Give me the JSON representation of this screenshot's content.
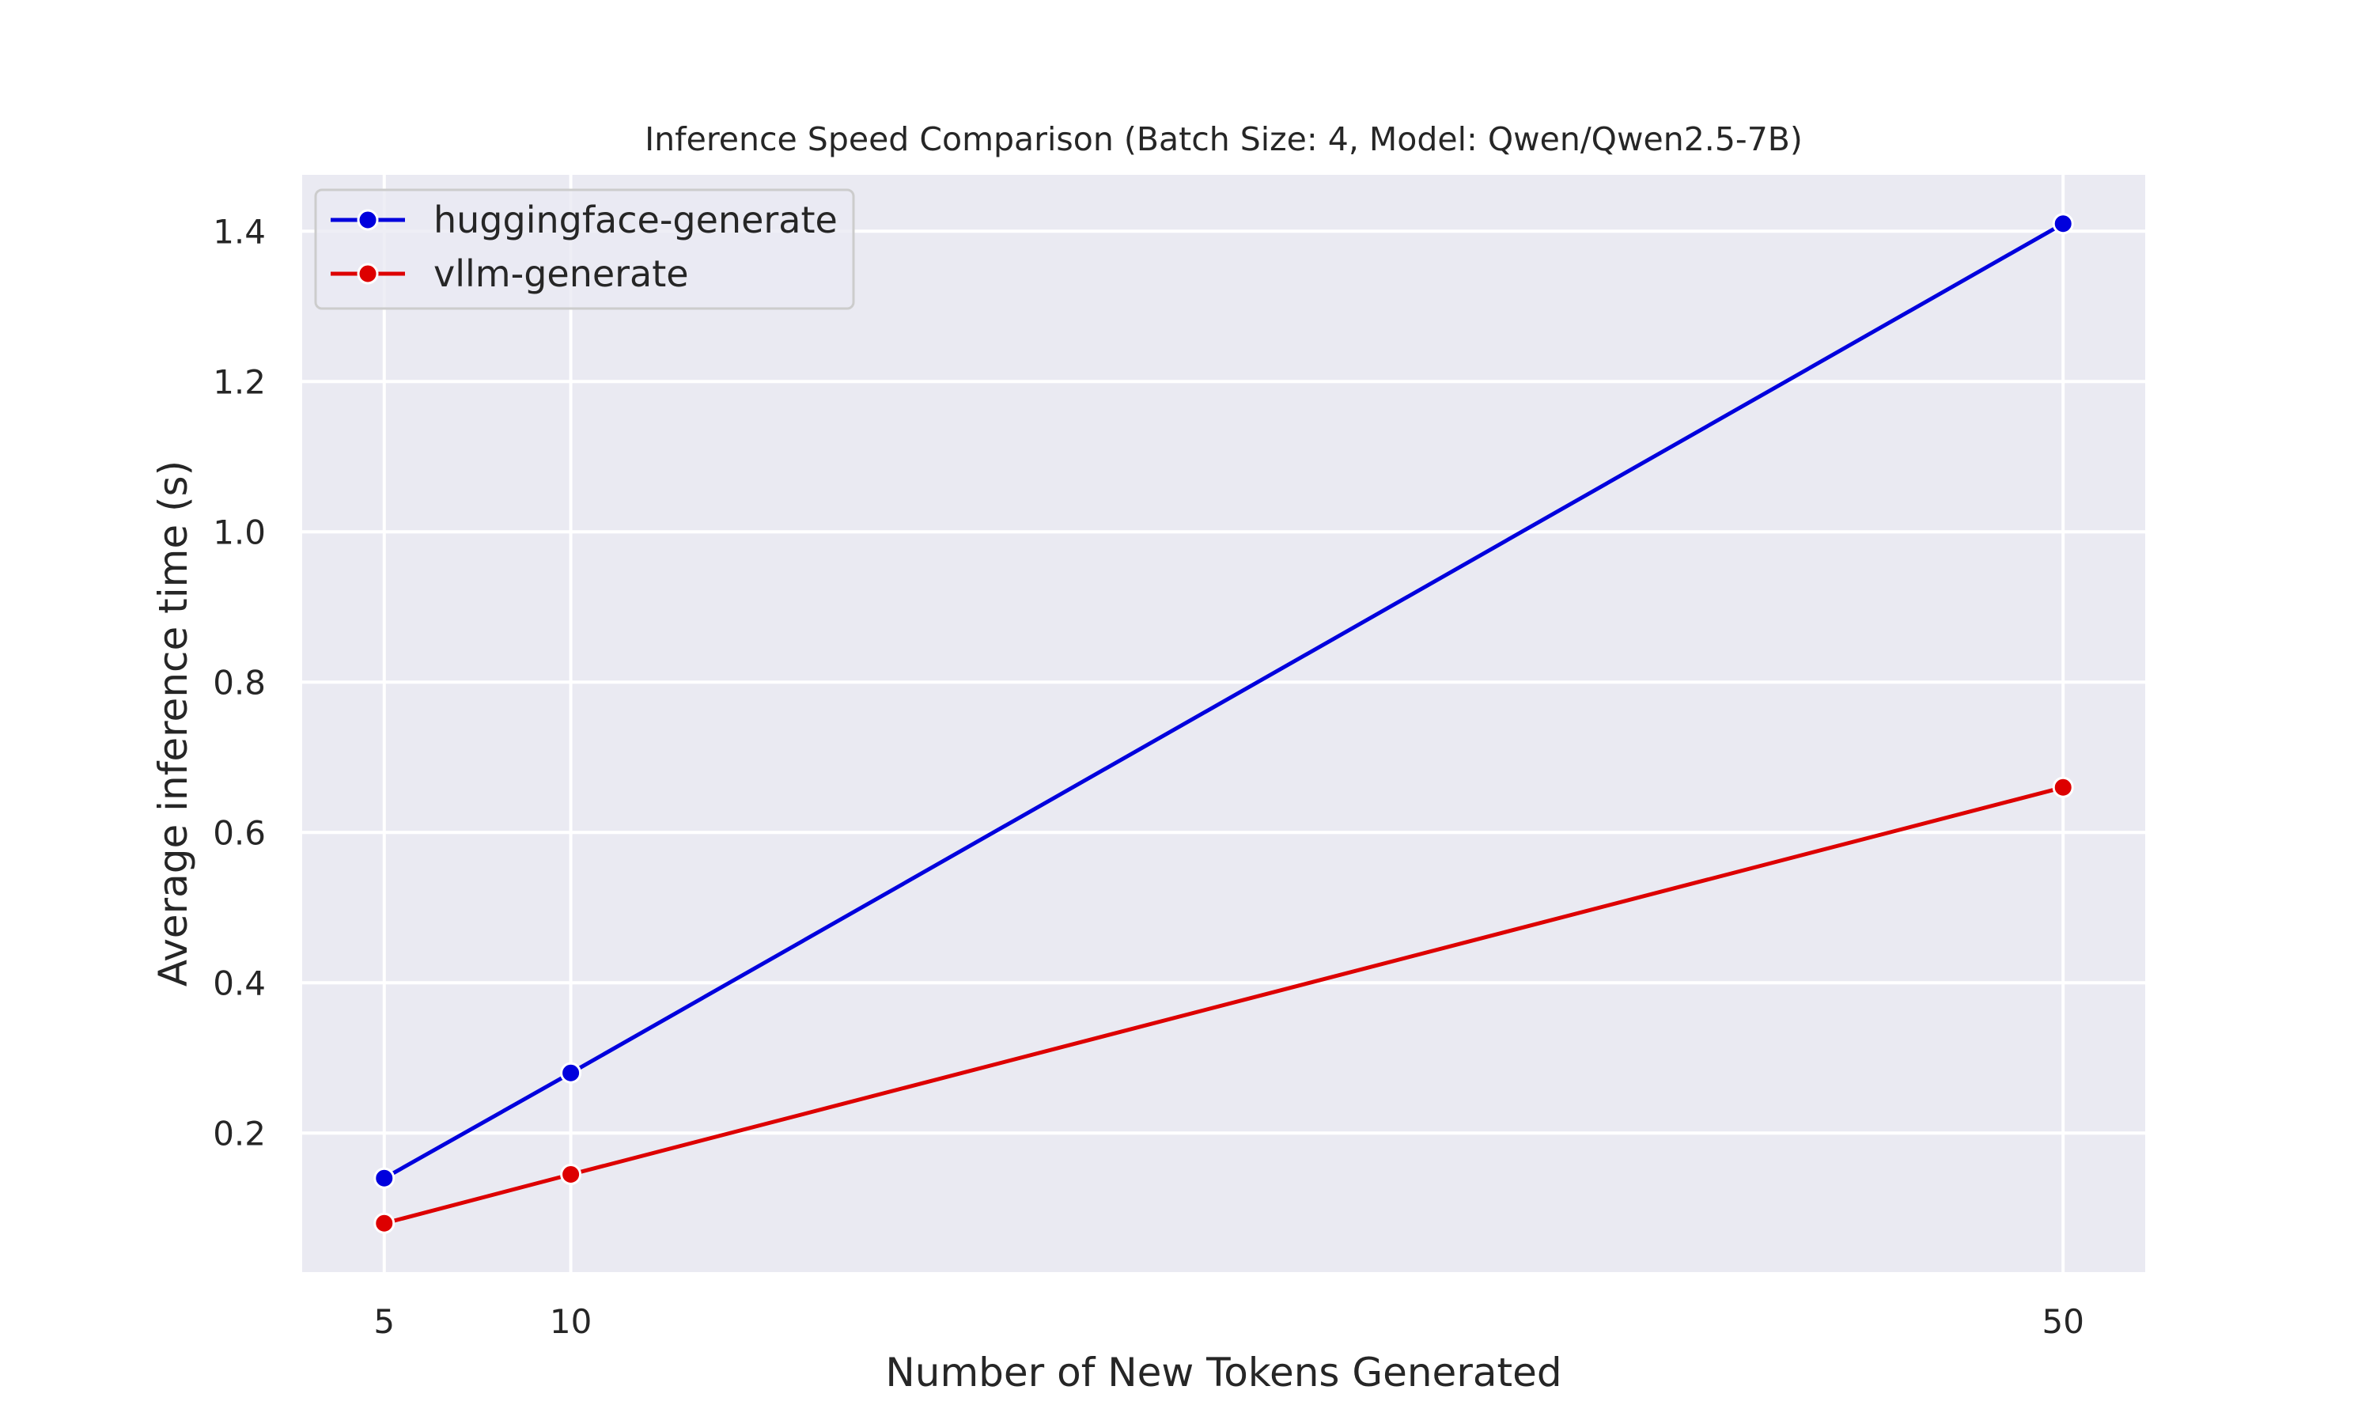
{
  "chart_data": {
    "type": "line",
    "title": "Inference Speed Comparison (Batch Size: 4, Model: Qwen/Qwen2.5-7B)",
    "xlabel": "Number of New Tokens Generated",
    "ylabel": "Average inference time (s)",
    "x": [
      5,
      10,
      50
    ],
    "x_ticks": [
      "5",
      "10",
      "50"
    ],
    "y_ticks": [
      "0.2",
      "0.4",
      "0.6",
      "0.8",
      "1.0",
      "1.2",
      "1.4"
    ],
    "xlim": [
      2.8,
      52.2
    ],
    "ylim": [
      0.015,
      1.475
    ],
    "grid": true,
    "legend_position": "upper-left",
    "background_color": "#EAEAF2",
    "series": [
      {
        "name": "huggingface-generate",
        "color": "#0000DD",
        "values": [
          0.14,
          0.28,
          1.41
        ]
      },
      {
        "name": "vllm-generate",
        "color": "#DD0000",
        "values": [
          0.08,
          0.145,
          0.66
        ]
      }
    ]
  }
}
